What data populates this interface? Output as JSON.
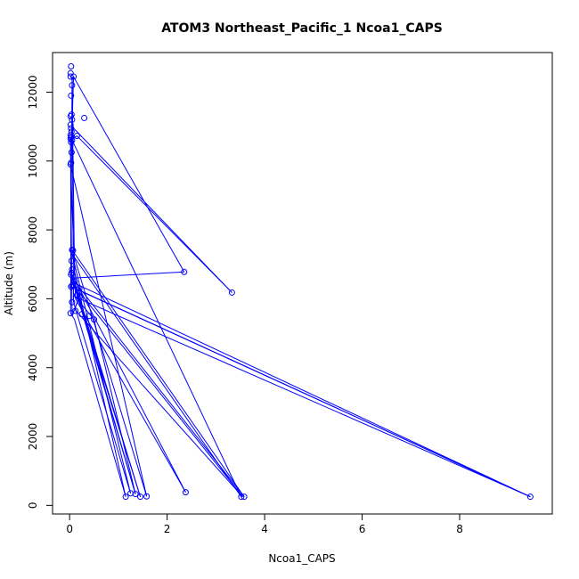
{
  "chart_data": {
    "type": "scatter",
    "title": "ATOM3 Northeast_Pacific_1 Ncoa1_CAPS",
    "xlabel": "Ncoa1_CAPS",
    "ylabel": "Altitude (m)",
    "xlim": [
      -0.35,
      9.9
    ],
    "ylim": [
      -250,
      13150
    ],
    "xticks": [
      0,
      2,
      4,
      6,
      8
    ],
    "yticks": [
      0,
      2000,
      4000,
      6000,
      8000,
      10000,
      12000
    ],
    "grid": false,
    "legend": "none",
    "color": "#0000ff",
    "series": [
      {
        "points": [
          [
            0.03,
            12750
          ],
          [
            0.02,
            12550
          ],
          [
            0.08,
            12450
          ],
          [
            0.02,
            12450
          ],
          [
            0.05,
            12200
          ],
          [
            0.03,
            11900
          ],
          [
            0.3,
            11250
          ],
          [
            0.04,
            11350
          ],
          [
            0.02,
            11300
          ],
          [
            0.05,
            11200
          ],
          [
            0.02,
            11050
          ],
          [
            0.03,
            10950
          ],
          [
            0.04,
            10850
          ],
          [
            0.02,
            10750
          ],
          [
            0.03,
            10700
          ],
          [
            0.15,
            10730
          ],
          [
            0.02,
            10650
          ],
          [
            0.05,
            10600
          ],
          [
            0.03,
            10550
          ],
          [
            0.04,
            10250
          ],
          [
            0.03,
            9950
          ],
          [
            0.02,
            9900
          ],
          [
            2.35,
            6780
          ],
          [
            3.33,
            6180
          ],
          [
            0.05,
            7420
          ],
          [
            0.07,
            7400
          ],
          [
            0.04,
            7100
          ],
          [
            0.05,
            6850
          ],
          [
            0.04,
            6750
          ],
          [
            0.03,
            6700
          ],
          [
            0.1,
            6500
          ],
          [
            0.05,
            6380
          ],
          [
            0.03,
            6350
          ],
          [
            0.2,
            6300
          ],
          [
            0.15,
            6100
          ],
          [
            0.2,
            6050
          ],
          [
            0.05,
            5900
          ],
          [
            0.12,
            5650
          ],
          [
            0.4,
            5500
          ],
          [
            0.02,
            5580
          ],
          [
            0.25,
            5550
          ],
          [
            0.5,
            5400
          ],
          [
            1.15,
            250
          ],
          [
            1.25,
            350
          ],
          [
            1.35,
            330
          ],
          [
            1.45,
            250
          ],
          [
            1.58,
            260
          ],
          [
            2.38,
            380
          ],
          [
            3.52,
            250
          ],
          [
            3.58,
            250
          ],
          [
            9.45,
            250
          ]
        ],
        "path": [
          [
            0.05,
            12200
          ],
          [
            0.02,
            5580
          ],
          [
            0.1,
            5400
          ],
          [
            1.15,
            250
          ],
          [
            0.1,
            6800
          ],
          [
            0.05,
            12450
          ],
          [
            0.08,
            5900
          ],
          [
            1.25,
            350
          ],
          [
            0.05,
            7300
          ],
          [
            3.52,
            250
          ],
          [
            0.02,
            10700
          ],
          [
            0.03,
            6350
          ],
          [
            9.45,
            250
          ],
          [
            0.12,
            6300
          ],
          [
            1.45,
            250
          ],
          [
            0.1,
            6500
          ],
          [
            3.58,
            250
          ],
          [
            0.05,
            7420
          ],
          [
            1.58,
            260
          ],
          [
            0.02,
            9900
          ],
          [
            0.12,
            6000
          ],
          [
            2.38,
            380
          ],
          [
            0.05,
            6700
          ],
          [
            1.35,
            330
          ],
          [
            0.05,
            6600
          ],
          [
            2.35,
            6780
          ],
          [
            0.08,
            12450
          ],
          [
            0.05,
            11000
          ],
          [
            3.33,
            6180
          ],
          [
            0.15,
            10730
          ],
          [
            0.02,
            10600
          ],
          [
            0.05,
            5500
          ],
          [
            0.2,
            6050
          ],
          [
            0.1,
            5700
          ],
          [
            3.55,
            250
          ],
          [
            0.03,
            6500
          ],
          [
            9.45,
            250
          ],
          [
            0.12,
            6050
          ],
          [
            0.5,
            5400
          ],
          [
            1.35,
            330
          ]
        ]
      }
    ]
  }
}
